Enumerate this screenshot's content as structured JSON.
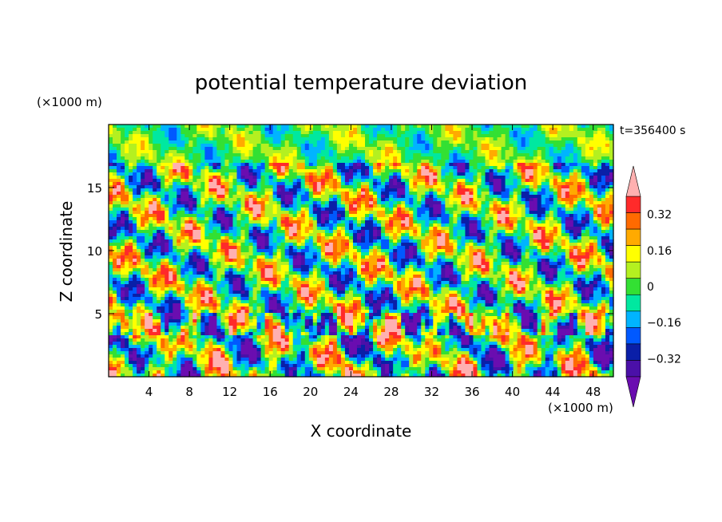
{
  "chart_data": {
    "type": "heatmap",
    "title": "potential temperature deviation",
    "xlabel": "X coordinate",
    "ylabel": "Z coordinate",
    "x_unit_label": "(×1000 m)",
    "y_unit_label": "(×1000 m)",
    "time_label": "t=356400 s",
    "xlim": [
      0,
      50
    ],
    "ylim": [
      0,
      20
    ],
    "x_ticks": [
      4,
      8,
      12,
      16,
      20,
      24,
      28,
      32,
      36,
      40,
      44,
      48
    ],
    "x_tick_labels": [
      "4",
      "8",
      "12",
      "16",
      "20",
      "24",
      "28",
      "32",
      "36",
      "40",
      "44",
      "48"
    ],
    "y_ticks": [
      5,
      10,
      15
    ],
    "y_tick_labels": [
      "5",
      "10",
      "15"
    ],
    "colorbar": {
      "levels": [
        -0.4,
        -0.32,
        -0.24,
        -0.16,
        -0.08,
        0,
        0.08,
        0.16,
        0.24,
        0.32,
        0.4
      ],
      "labeled_values": [
        0.32,
        0.16,
        0,
        -0.16,
        -0.32
      ],
      "labels": [
        "0.32",
        "0.16",
        "0",
        "−0.16",
        "−0.32"
      ],
      "colors": [
        "#6a0db0",
        "#4b10a8",
        "#0a1fa8",
        "#0059ff",
        "#00b4ff",
        "#00e8a0",
        "#33e033",
        "#b4f020",
        "#ffff00",
        "#ffaa00",
        "#ff6a00",
        "#ff2a2a",
        "#ffb0b0"
      ],
      "extend": "both"
    },
    "field_description": "banded potential temperature deviation field; strong oscillating layer near z=4 (x1000 m), tilted alternating warm/cold bands aloft, weaker near-zero values above z=17"
  }
}
